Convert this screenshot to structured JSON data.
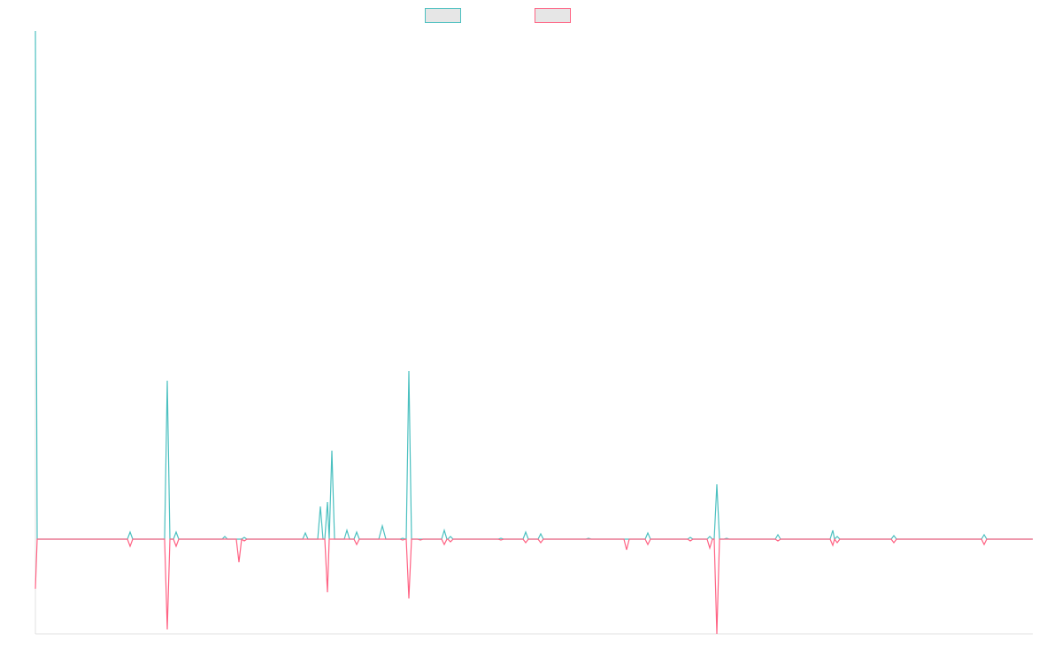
{
  "chart_data": {
    "type": "line",
    "xlim": [
      0,
      1127
    ],
    "ylim": [
      -107,
      574
    ],
    "x": [
      0,
      2,
      104,
      107,
      110,
      146,
      149,
      152,
      156,
      159,
      162,
      211,
      214,
      217,
      227,
      230,
      233,
      236,
      239,
      302,
      305,
      308,
      319,
      322,
      325,
      327,
      330,
      332,
      335,
      338,
      349,
      352,
      355,
      360,
      363,
      366,
      388,
      392,
      396,
      412,
      415,
      418,
      419,
      422,
      425,
      432,
      435,
      438,
      459,
      462,
      465,
      466,
      469,
      472,
      523,
      526,
      529,
      551,
      554,
      557,
      568,
      571,
      574,
      622,
      625,
      628,
      665,
      668,
      671,
      689,
      692,
      695,
      737,
      740,
      743,
      759,
      762,
      765,
      767,
      770,
      773,
      778,
      781,
      784,
      836,
      839,
      842,
      898,
      901,
      903,
      906,
      909,
      967,
      970,
      973,
      1069,
      1072,
      1075,
      1127
    ],
    "series": [
      {
        "color": "#4bc0c0",
        "values": [
          574,
          0,
          0,
          8,
          0,
          0,
          179,
          0,
          0,
          8,
          0,
          0,
          3,
          0,
          0,
          0,
          0,
          2,
          0,
          0,
          7,
          0,
          0,
          37,
          0,
          0,
          42,
          0,
          100,
          0,
          0,
          10,
          0,
          0,
          8,
          0,
          0,
          15,
          0,
          0,
          1,
          0,
          0,
          190,
          0,
          0,
          0,
          0,
          0,
          10,
          0,
          0,
          3,
          0,
          0,
          1,
          0,
          0,
          8,
          0,
          0,
          6,
          0,
          0,
          1,
          0,
          0,
          0,
          0,
          0,
          7,
          0,
          0,
          2,
          0,
          0,
          3,
          0,
          0,
          62,
          0,
          0,
          1,
          0,
          0,
          5,
          0,
          0,
          10,
          0,
          3,
          0,
          0,
          4,
          0,
          0,
          5,
          0,
          0
        ]
      },
      {
        "color": "#ff6384",
        "values": [
          -56,
          0,
          0,
          -8,
          0,
          0,
          -102,
          0,
          0,
          -8,
          0,
          0,
          0,
          0,
          0,
          -26,
          0,
          -2,
          0,
          0,
          0,
          0,
          0,
          0,
          0,
          0,
          -60,
          0,
          0,
          0,
          0,
          0,
          0,
          0,
          -6,
          0,
          0,
          0,
          0,
          0,
          -1,
          0,
          0,
          -67,
          0,
          0,
          -1,
          0,
          0,
          -6,
          0,
          0,
          -3,
          0,
          0,
          -1,
          0,
          0,
          -4,
          0,
          0,
          -4,
          0,
          0,
          0,
          0,
          0,
          -12,
          0,
          0,
          -6,
          0,
          0,
          -2,
          0,
          0,
          -10,
          0,
          0,
          -107,
          0,
          0,
          0,
          0,
          0,
          -2,
          0,
          0,
          -7,
          0,
          -4,
          0,
          0,
          -4,
          0,
          0,
          -6,
          0,
          0
        ]
      }
    ]
  }
}
